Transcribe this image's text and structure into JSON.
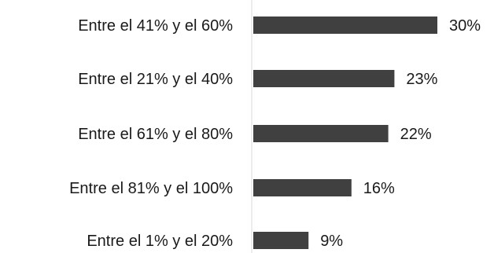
{
  "chart_data": {
    "type": "bar",
    "orientation": "horizontal",
    "categories": [
      "Entre el 41% y el 60%",
      "Entre el 21% y el 40%",
      "Entre el 61% y el 80%",
      "Entre el 81% y el 100%",
      "Entre el 1% y el 20%"
    ],
    "values": [
      30,
      23,
      22,
      16,
      9
    ],
    "value_labels": [
      "30%",
      "23%",
      "22%",
      "16%",
      "9%"
    ],
    "title": "",
    "xlabel": "",
    "ylabel": "",
    "xlim": [
      0,
      30
    ],
    "grid": false,
    "legend": "none",
    "colors": {
      "bar": "#404040",
      "axis": "#d9d9d9",
      "text": "#1a1a1a"
    }
  }
}
